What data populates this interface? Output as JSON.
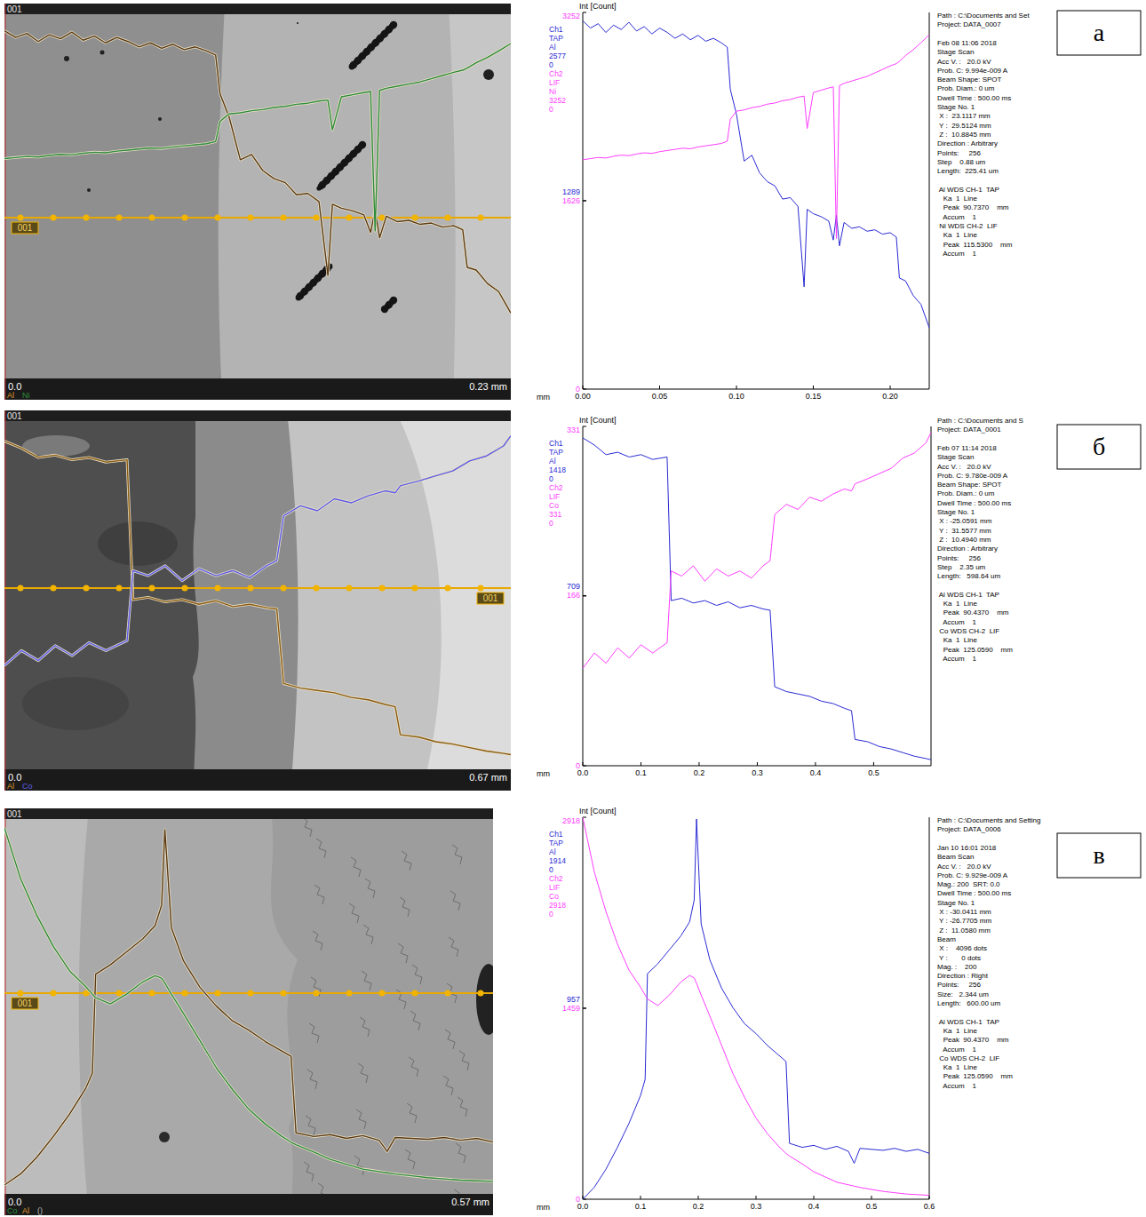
{
  "chart_data": [
    {
      "type": "line",
      "x_label": "mm",
      "y_label": "Int [Count]",
      "x": [
        0,
        0.005,
        0.01,
        0.015,
        0.02,
        0.025,
        0.03,
        0.035,
        0.04,
        0.045,
        0.05,
        0.055,
        0.06,
        0.065,
        0.07,
        0.075,
        0.08,
        0.085,
        0.09,
        0.094,
        0.096,
        0.1,
        0.105,
        0.11,
        0.115,
        0.12,
        0.125,
        0.13,
        0.135,
        0.14,
        0.144,
        0.146,
        0.15,
        0.155,
        0.16,
        0.163,
        0.165,
        0.167,
        0.17,
        0.175,
        0.18,
        0.185,
        0.19,
        0.195,
        0.2,
        0.204,
        0.206,
        0.21,
        0.215,
        0.22,
        0.2254
      ],
      "xlim": [
        0,
        0.22541
      ],
      "xticks": [
        {
          "value": 0,
          "label": "0.00"
        },
        0.05,
        {
          "value": 0.1,
          "label": "0.10"
        },
        0.15,
        {
          "value": 0.2,
          "label": "0.20"
        }
      ],
      "ylim": [
        0,
        2577
      ],
      "yticks": [
        1289
      ],
      "y2lim": [
        0,
        3252
      ],
      "y2ticks": [
        0,
        1626,
        3252
      ],
      "series": [
        {
          "name": "Al",
          "channel": "Ch1",
          "crystal": "TAP",
          "color": "#2a2ad4",
          "values": [
            2520,
            2470,
            2500,
            2440,
            2490,
            2460,
            2510,
            2450,
            2480,
            2430,
            2470,
            2440,
            2400,
            2430,
            2390,
            2420,
            2380,
            2400,
            2370,
            2340,
            2050,
            1880,
            1560,
            1600,
            1480,
            1420,
            1390,
            1300,
            1310,
            1250,
            700,
            1230,
            1200,
            1180,
            1150,
            1020,
            1190,
            980,
            1140,
            1100,
            1110,
            1080,
            1090,
            1060,
            1070,
            1040,
            760,
            740,
            640,
            580,
            420
          ]
        },
        {
          "name": "Ni",
          "channel": "Ch2",
          "crystal": "LIF",
          "color": "#ff3cff",
          "axis": "y2",
          "values": [
            1980,
            1990,
            2000,
            1995,
            2010,
            2020,
            2015,
            2030,
            2040,
            2035,
            2050,
            2060,
            2070,
            2080,
            2075,
            2090,
            2100,
            2110,
            2120,
            2140,
            2330,
            2400,
            2410,
            2430,
            2440,
            2460,
            2470,
            2490,
            2500,
            2520,
            2530,
            2250,
            2560,
            2580,
            2600,
            2610,
            1300,
            2620,
            2640,
            2660,
            2680,
            2700,
            2730,
            2760,
            2790,
            2810,
            2830,
            2880,
            2930,
            2990,
            3060
          ]
        }
      ]
    },
    {
      "type": "line",
      "x_label": "mm",
      "y_label": "Int [Count]",
      "x": [
        0,
        0.02,
        0.04,
        0.06,
        0.08,
        0.1,
        0.12,
        0.145,
        0.152,
        0.17,
        0.19,
        0.21,
        0.23,
        0.25,
        0.27,
        0.29,
        0.31,
        0.322,
        0.33,
        0.35,
        0.37,
        0.39,
        0.41,
        0.43,
        0.45,
        0.462,
        0.468,
        0.49,
        0.51,
        0.53,
        0.55,
        0.57,
        0.59,
        0.5986
      ],
      "xlim": [
        0,
        0.59864
      ],
      "xticks": [
        {
          "value": 0,
          "label": "0.0"
        },
        0.1,
        0.2,
        0.3,
        0.4,
        0.5
      ],
      "ylim": [
        0,
        1418
      ],
      "yticks": [
        709
      ],
      "y2lim": [
        0,
        331
      ],
      "y2ticks": [
        0,
        166,
        331
      ],
      "series": [
        {
          "name": "Al",
          "channel": "Ch1",
          "crystal": "TAP",
          "color": "#2a2ad4",
          "values": [
            1370,
            1340,
            1300,
            1310,
            1290,
            1300,
            1280,
            1290,
            690,
            700,
            680,
            690,
            670,
            685,
            660,
            670,
            655,
            650,
            330,
            310,
            300,
            290,
            270,
            260,
            240,
            230,
            110,
            100,
            80,
            70,
            55,
            40,
            30,
            25
          ]
        },
        {
          "name": "Co",
          "channel": "Ch2",
          "crystal": "LIF",
          "color": "#ff3cff",
          "axis": "y2",
          "values": [
            95,
            110,
            100,
            115,
            105,
            118,
            110,
            120,
            190,
            185,
            195,
            180,
            192,
            185,
            190,
            183,
            195,
            200,
            245,
            255,
            250,
            262,
            258,
            265,
            270,
            268,
            275,
            280,
            285,
            290,
            300,
            305,
            315,
            325
          ]
        }
      ]
    },
    {
      "type": "line",
      "x_label": "mm",
      "y_label": "Int [Count]",
      "x": [
        0,
        0.02,
        0.04,
        0.06,
        0.08,
        0.1,
        0.108,
        0.112,
        0.13,
        0.15,
        0.17,
        0.185,
        0.193,
        0.197,
        0.205,
        0.22,
        0.24,
        0.26,
        0.28,
        0.3,
        0.32,
        0.34,
        0.352,
        0.358,
        0.38,
        0.4,
        0.42,
        0.44,
        0.46,
        0.47,
        0.48,
        0.5,
        0.52,
        0.54,
        0.56,
        0.58,
        0.6
      ],
      "xlim": [
        0,
        0.6
      ],
      "xticks": [
        {
          "value": 0,
          "label": "0.0"
        },
        0.1,
        0.2,
        0.3,
        0.4,
        0.5,
        0.6
      ],
      "ylim": [
        0,
        1914
      ],
      "yticks": [
        957
      ],
      "y2lim": [
        0,
        2918
      ],
      "y2ticks": [
        0,
        1459,
        2918
      ],
      "series": [
        {
          "name": "Al",
          "channel": "Ch1",
          "crystal": "TAP",
          "color": "#2a2ad4",
          "values": [
            0,
            60,
            150,
            260,
            380,
            520,
            600,
            1130,
            1180,
            1250,
            1320,
            1390,
            1500,
            1905,
            1380,
            1200,
            1060,
            960,
            880,
            830,
            770,
            720,
            690,
            280,
            260,
            270,
            250,
            265,
            240,
            180,
            255,
            250,
            245,
            255,
            240,
            250,
            230
          ]
        },
        {
          "name": "Co",
          "channel": "Ch2",
          "crystal": "LIF",
          "color": "#ff3cff",
          "axis": "y2",
          "values": [
            2918,
            2500,
            2200,
            1950,
            1750,
            1620,
            1560,
            1530,
            1480,
            1560,
            1660,
            1710,
            1690,
            1650,
            1560,
            1400,
            1180,
            960,
            780,
            620,
            500,
            400,
            350,
            330,
            270,
            210,
            170,
            130,
            110,
            100,
            90,
            75,
            60,
            50,
            40,
            35,
            30
          ]
        }
      ]
    }
  ],
  "images": [
    {
      "id_label": "001",
      "line_label": "001",
      "origin_label": "0.0",
      "scale_label": "0.23 mm",
      "elements": [
        "Al",
        "Ni"
      ]
    },
    {
      "id_label": "001",
      "line_label": "001",
      "origin_label": "0.0",
      "scale_label": "0.67 mm",
      "elements": [
        "Al",
        "Co"
      ]
    },
    {
      "id_label": "001",
      "line_label": "001",
      "origin_label": "0.0",
      "scale_label": "0.57 mm",
      "elements": [
        "Co",
        "Al",
        "()"
      ]
    }
  ],
  "info": [
    [
      [
        "Path : C:\\Documents and Set",
        "Project: DATA_0007"
      ],
      [
        "Feb 08 11:06 2018",
        "Stage Scan",
        "Acc V. :   20.0 kV",
        "Prob. C: 9.994e-009 A",
        "Beam Shape: SPOT",
        "Prob. Diam.: 0 um",
        "Dwell Time : 500.00 ms",
        "Stage No. 1",
        " X :  23.1117 mm",
        " Y :  29.5124 mm",
        " Z :  10.8845 mm",
        "Direction : Arbitrary",
        "Points:     256",
        "Step    0.88 um",
        "Length:  225.41 um"
      ],
      [
        " Al WDS CH-1  TAP",
        "   Ka  1  Line",
        "   Peak  90.7370    mm",
        "   Accum    1",
        " Ni WDS CH-2  LIF",
        "   Ka  1  Line",
        "   Peak  115.5300    mm",
        "   Accum    1"
      ]
    ],
    [
      [
        "Path : C:\\Documents and S",
        "Project: DATA_0001"
      ],
      [
        "Feb 07 11:14 2018",
        "Stage Scan",
        "Acc V. :   20.0 kV",
        "Prob. C: 9.780e-009 A",
        "Beam Shape: SPOT",
        "Prob. Diam.: 0 um",
        "Dwell Time : 500.00 ms",
        "Stage No. 1",
        " X : -25.0591 mm",
        " Y :  31.5577 mm",
        " Z :  10.4940 mm",
        "Direction : Arbitrary",
        "Points:     256",
        "Step    2.35 um",
        "Length:   598.64 um"
      ],
      [
        " Al WDS CH-1  TAP",
        "   Ka  1  Line",
        "   Peak  90.4370    mm",
        "   Accum    1",
        " Co WDS CH-2  LIF",
        "   Ka  1  Line",
        "   Peak  125.0590    mm",
        "   Accum    1"
      ]
    ],
    [
      [
        "Path : C:\\Documents and Setting",
        "Project: DATA_0006"
      ],
      [
        "Jan 10 16:01 2018",
        "Beam Scan",
        "Acc V. :   20.0 kV",
        "Prob. C: 9.929e-009 A",
        "Mag.: 200  SRT: 0.0",
        "Dwell Time : 500.00 ms",
        "Stage No. 1",
        " X : -30.0411 mm",
        " Y : -26.7705 mm",
        " Z :  11.0580 mm",
        "Beam",
        " X :    4096 dots",
        " Y :       0 dots",
        "Mag. :    200",
        "Direction : Right",
        "Points:     256",
        "Size:   2.344 um",
        "Length:   600.00 um"
      ],
      [
        " Al WDS CH-1  TAP",
        "   Ka  1  Line",
        "   Peak  90.4370    mm",
        "   Accum    1",
        " Co WDS CH-2  LIF",
        "   Ka  1  Line",
        "   Peak  125.0590    mm",
        "   Accum    1"
      ]
    ]
  ],
  "letters": [
    "а",
    "б",
    "в"
  ]
}
